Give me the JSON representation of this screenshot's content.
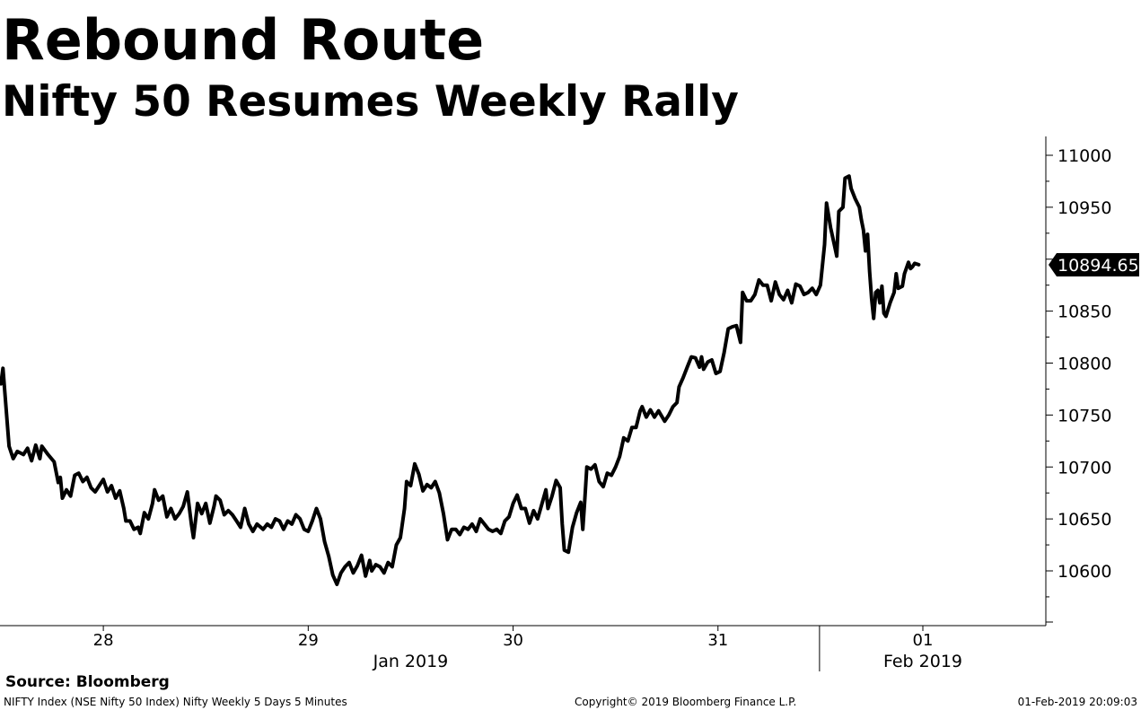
{
  "header": {
    "title": "Rebound Route",
    "subtitle": "Nifty 50 Resumes Weekly Rally"
  },
  "footer": {
    "source": "Source: Bloomberg",
    "description": "NIFTY Index (NSE Nifty 50 Index) Nifty Weekly 5 Days 5 Minutes",
    "copyright": "Copyright© 2019 Bloomberg Finance L.P.",
    "timestamp": "01-Feb-2019 20:09:03"
  },
  "chart_data": {
    "type": "line",
    "title": "Rebound Route",
    "subtitle": "Nifty 50 Resumes Weekly Rally",
    "xlabel": "",
    "ylabel": "",
    "ylim": [
      10550,
      11020
    ],
    "yticks": [
      10600,
      10650,
      10700,
      10750,
      10800,
      10850,
      10900,
      10950,
      11000
    ],
    "ytick_labels": [
      "10600",
      "10650",
      "10700",
      "10750",
      "10800",
      "10850",
      "",
      "10950",
      "11000"
    ],
    "y_axis_side": "right",
    "grid": false,
    "legend": "none",
    "line_color": "#000000",
    "day_labels": [
      {
        "label": "28",
        "x": 28.5
      },
      {
        "label": "29",
        "x": 29.5
      },
      {
        "label": "30",
        "x": 30.5
      },
      {
        "label": "31",
        "x": 31.5
      },
      {
        "label": "01",
        "x": 32.5
      }
    ],
    "month_labels": [
      {
        "label": "Jan 2019",
        "x": 30.0
      },
      {
        "label": "Feb 2019",
        "x": 32.5
      }
    ],
    "month_divider_x": 32.0,
    "last_value_label": "10894.65",
    "last_value": 10894.65,
    "x_unit": "January 2019 day number (32 = 01 Feb)",
    "series": [
      {
        "values": [
          [
            28.0,
            10780
          ],
          [
            28.01,
            10795
          ],
          [
            28.04,
            10720
          ],
          [
            28.06,
            10708
          ],
          [
            28.08,
            10715
          ],
          [
            28.11,
            10712
          ],
          [
            28.13,
            10718
          ],
          [
            28.15,
            10706
          ],
          [
            28.17,
            10721
          ],
          [
            28.19,
            10708
          ],
          [
            28.2,
            10720
          ],
          [
            28.23,
            10712
          ],
          [
            28.26,
            10705
          ],
          [
            28.28,
            10685
          ],
          [
            28.29,
            10690
          ],
          [
            28.3,
            10670
          ],
          [
            28.32,
            10678
          ],
          [
            28.34,
            10672
          ],
          [
            28.36,
            10692
          ],
          [
            28.38,
            10694
          ],
          [
            28.4,
            10686
          ],
          [
            28.42,
            10690
          ],
          [
            28.44,
            10680
          ],
          [
            28.46,
            10676
          ],
          [
            28.48,
            10682
          ],
          [
            28.5,
            10688
          ],
          [
            28.52,
            10676
          ],
          [
            28.54,
            10682
          ],
          [
            28.56,
            10670
          ],
          [
            28.58,
            10677
          ],
          [
            28.6,
            10660
          ],
          [
            28.61,
            10648
          ],
          [
            28.63,
            10648
          ],
          [
            28.65,
            10640
          ],
          [
            28.67,
            10642
          ],
          [
            28.68,
            10636
          ],
          [
            28.7,
            10656
          ],
          [
            28.72,
            10650
          ],
          [
            28.74,
            10665
          ],
          [
            28.75,
            10678
          ],
          [
            28.77,
            10668
          ],
          [
            28.79,
            10672
          ],
          [
            28.81,
            10652
          ],
          [
            28.83,
            10660
          ],
          [
            28.85,
            10650
          ],
          [
            28.87,
            10655
          ],
          [
            28.89,
            10662
          ],
          [
            28.91,
            10676
          ],
          [
            28.93,
            10645
          ],
          [
            28.94,
            10632
          ],
          [
            28.96,
            10665
          ],
          [
            28.98,
            10655
          ],
          [
            29.0,
            10665
          ],
          [
            29.02,
            10646
          ],
          [
            29.04,
            10662
          ],
          [
            29.05,
            10672
          ],
          [
            29.07,
            10668
          ],
          [
            29.09,
            10654
          ],
          [
            29.11,
            10658
          ],
          [
            29.13,
            10654
          ],
          [
            29.15,
            10648
          ],
          [
            29.17,
            10642
          ],
          [
            29.19,
            10660
          ],
          [
            29.21,
            10645
          ],
          [
            29.23,
            10638
          ],
          [
            29.25,
            10645
          ],
          [
            29.28,
            10640
          ],
          [
            29.3,
            10645
          ],
          [
            29.32,
            10642
          ],
          [
            29.34,
            10650
          ],
          [
            29.36,
            10648
          ],
          [
            29.38,
            10640
          ],
          [
            29.4,
            10648
          ],
          [
            29.42,
            10645
          ],
          [
            29.44,
            10654
          ],
          [
            29.46,
            10650
          ],
          [
            29.48,
            10640
          ],
          [
            29.5,
            10638
          ],
          [
            29.52,
            10648
          ],
          [
            29.54,
            10660
          ],
          [
            29.56,
            10650
          ],
          [
            29.58,
            10628
          ],
          [
            29.6,
            10614
          ],
          [
            29.62,
            10596
          ],
          [
            29.64,
            10587
          ],
          [
            29.66,
            10598
          ],
          [
            29.68,
            10604
          ],
          [
            29.7,
            10608
          ],
          [
            29.72,
            10598
          ],
          [
            29.74,
            10605
          ],
          [
            29.76,
            10615
          ],
          [
            29.78,
            10595
          ],
          [
            29.8,
            10610
          ],
          [
            29.81,
            10600
          ],
          [
            29.83,
            10606
          ],
          [
            29.85,
            10604
          ],
          [
            29.87,
            10598
          ],
          [
            29.89,
            10608
          ],
          [
            29.91,
            10604
          ],
          [
            29.93,
            10625
          ],
          [
            29.95,
            10632
          ],
          [
            29.97,
            10660
          ],
          [
            29.98,
            10686
          ],
          [
            30.0,
            10682
          ],
          [
            30.02,
            10703
          ],
          [
            30.04,
            10693
          ],
          [
            30.06,
            10677
          ],
          [
            30.08,
            10683
          ],
          [
            30.1,
            10680
          ],
          [
            30.12,
            10686
          ],
          [
            30.14,
            10675
          ],
          [
            30.16,
            10655
          ],
          [
            30.18,
            10630
          ],
          [
            30.2,
            10640
          ],
          [
            30.22,
            10640
          ],
          [
            30.24,
            10635
          ],
          [
            30.26,
            10642
          ],
          [
            30.28,
            10640
          ],
          [
            30.3,
            10645
          ],
          [
            30.32,
            10638
          ],
          [
            30.34,
            10650
          ],
          [
            30.36,
            10645
          ],
          [
            30.38,
            10640
          ],
          [
            30.4,
            10638
          ],
          [
            30.42,
            10640
          ],
          [
            30.44,
            10636
          ],
          [
            30.46,
            10648
          ],
          [
            30.48,
            10652
          ],
          [
            30.5,
            10665
          ],
          [
            30.52,
            10673
          ],
          [
            30.54,
            10660
          ],
          [
            30.56,
            10660
          ],
          [
            30.58,
            10646
          ],
          [
            30.6,
            10658
          ],
          [
            30.62,
            10650
          ],
          [
            30.64,
            10664
          ],
          [
            30.66,
            10678
          ],
          [
            30.67,
            10660
          ],
          [
            30.69,
            10672
          ],
          [
            30.71,
            10687
          ],
          [
            30.73,
            10680
          ],
          [
            30.74,
            10645
          ],
          [
            30.75,
            10620
          ],
          [
            30.77,
            10618
          ],
          [
            30.79,
            10642
          ],
          [
            30.81,
            10656
          ],
          [
            30.83,
            10666
          ],
          [
            30.84,
            10640
          ],
          [
            30.85,
            10668
          ],
          [
            30.86,
            10700
          ],
          [
            30.88,
            10698
          ],
          [
            30.9,
            10702
          ],
          [
            30.92,
            10686
          ],
          [
            30.94,
            10681
          ],
          [
            30.96,
            10694
          ],
          [
            30.98,
            10692
          ],
          [
            31.0,
            10700
          ],
          [
            31.02,
            10710
          ],
          [
            31.04,
            10728
          ],
          [
            31.06,
            10725
          ],
          [
            31.08,
            10738
          ],
          [
            31.1,
            10738
          ],
          [
            31.12,
            10754
          ],
          [
            31.13,
            10758
          ],
          [
            31.15,
            10748
          ],
          [
            31.17,
            10755
          ],
          [
            31.19,
            10748
          ],
          [
            31.21,
            10754
          ],
          [
            31.24,
            10744
          ],
          [
            31.26,
            10750
          ],
          [
            31.28,
            10758
          ],
          [
            31.3,
            10762
          ],
          [
            31.31,
            10777
          ],
          [
            31.33,
            10786
          ],
          [
            31.35,
            10796
          ],
          [
            31.37,
            10806
          ],
          [
            31.39,
            10805
          ],
          [
            31.41,
            10796
          ],
          [
            31.42,
            10806
          ],
          [
            31.43,
            10794
          ],
          [
            31.45,
            10801
          ],
          [
            31.47,
            10803
          ],
          [
            31.49,
            10790
          ],
          [
            31.51,
            10792
          ],
          [
            31.53,
            10810
          ],
          [
            31.55,
            10833
          ],
          [
            31.57,
            10835
          ],
          [
            31.59,
            10836
          ],
          [
            31.61,
            10820
          ],
          [
            31.62,
            10868
          ],
          [
            31.64,
            10860
          ],
          [
            31.66,
            10860
          ],
          [
            31.68,
            10866
          ],
          [
            31.7,
            10880
          ],
          [
            31.72,
            10875
          ],
          [
            31.74,
            10875
          ],
          [
            31.76,
            10860
          ],
          [
            31.78,
            10878
          ],
          [
            31.8,
            10866
          ],
          [
            31.82,
            10861
          ],
          [
            31.84,
            10870
          ],
          [
            31.86,
            10858
          ],
          [
            31.88,
            10876
          ],
          [
            31.9,
            10874
          ],
          [
            31.92,
            10866
          ],
          [
            31.94,
            10868
          ],
          [
            31.96,
            10872
          ],
          [
            31.98,
            10866
          ],
          [
            32.0,
            10875
          ],
          [
            32.02,
            10914
          ],
          [
            32.03,
            10954
          ],
          [
            32.05,
            10930
          ],
          [
            32.07,
            10912
          ],
          [
            32.08,
            10903
          ],
          [
            32.09,
            10946
          ],
          [
            32.11,
            10950
          ],
          [
            32.12,
            10978
          ],
          [
            32.14,
            10980
          ],
          [
            32.15,
            10968
          ],
          [
            32.17,
            10958
          ],
          [
            32.19,
            10950
          ],
          [
            32.2,
            10938
          ],
          [
            32.21,
            10928
          ],
          [
            32.22,
            10908
          ],
          [
            32.23,
            10924
          ],
          [
            32.24,
            10888
          ],
          [
            32.25,
            10862
          ],
          [
            32.26,
            10843
          ],
          [
            32.27,
            10868
          ],
          [
            32.28,
            10870
          ],
          [
            32.29,
            10858
          ],
          [
            32.3,
            10874
          ],
          [
            32.31,
            10848
          ],
          [
            32.32,
            10845
          ],
          [
            32.34,
            10858
          ],
          [
            32.36,
            10868
          ],
          [
            32.37,
            10886
          ],
          [
            32.38,
            10872
          ],
          [
            32.4,
            10874
          ],
          [
            32.41,
            10886
          ],
          [
            32.43,
            10897
          ],
          [
            32.44,
            10891
          ],
          [
            32.45,
            10893
          ],
          [
            32.46,
            10896
          ],
          [
            32.48,
            10894.65
          ]
        ]
      }
    ]
  }
}
